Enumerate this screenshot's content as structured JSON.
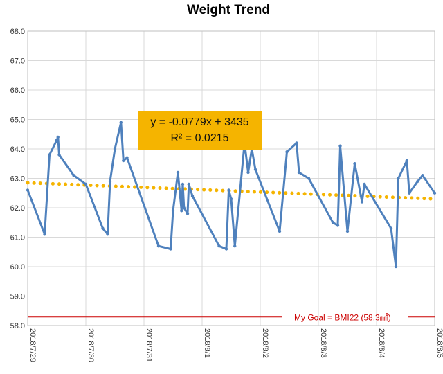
{
  "chart_data": {
    "type": "line",
    "title": "Weight Trend",
    "xlabel": "",
    "ylabel": "",
    "ylim": [
      58.0,
      68.0
    ],
    "yticks": [
      "58.0",
      "59.0",
      "60.0",
      "61.0",
      "62.0",
      "63.0",
      "64.0",
      "65.0",
      "66.0",
      "67.0",
      "68.0"
    ],
    "xlim": [
      "2018/7/29",
      "2018/8/5"
    ],
    "xtick_labels": [
      "2018/7/29",
      "2018/7/30",
      "2018/7/31",
      "2018/8/1",
      "2018/8/2",
      "2018/8/3",
      "2018/8/4",
      "2018/8/5"
    ],
    "grid": true,
    "series": [
      {
        "color": "#4f81bd",
        "points": [
          [
            "2018/7/29 00:00",
            62.6
          ],
          [
            "2018/7/29 07:00",
            61.1
          ],
          [
            "2018/7/29 09:00",
            63.8
          ],
          [
            "2018/7/29 12:00",
            64.3
          ],
          [
            "2018/7/29 12:30",
            64.4
          ],
          [
            "2018/7/29 13:00",
            63.8
          ],
          [
            "2018/7/29 19:00",
            63.1
          ],
          [
            "2018/7/30 00:00",
            62.8
          ],
          [
            "2018/7/30 07:00",
            61.3
          ],
          [
            "2018/7/30 09:00",
            61.1
          ],
          [
            "2018/7/30 10:00",
            62.9
          ],
          [
            "2018/7/30 12:00",
            64.0
          ],
          [
            "2018/7/30 14:30",
            64.9
          ],
          [
            "2018/7/30 15:30",
            63.6
          ],
          [
            "2018/7/30 17:00",
            63.7
          ],
          [
            "2018/7/31 06:00",
            60.7
          ],
          [
            "2018/7/31 11:00",
            60.6
          ],
          [
            "2018/7/31 12:00",
            61.9
          ],
          [
            "2018/7/31 14:00",
            63.2
          ],
          [
            "2018/7/31 15:30",
            61.9
          ],
          [
            "2018/7/31 16:00",
            62.8
          ],
          [
            "2018/7/31 16:30",
            62.0
          ],
          [
            "2018/7/31 18:00",
            61.8
          ],
          [
            "2018/7/31 18:30",
            62.8
          ],
          [
            "2018/7/31 20:00",
            62.4
          ],
          [
            "2018/8/1 07:00",
            60.7
          ],
          [
            "2018/8/1 10:00",
            60.6
          ],
          [
            "2018/8/1 11:00",
            62.6
          ],
          [
            "2018/8/1 12:00",
            62.3
          ],
          [
            "2018/8/1 13:30",
            60.7
          ],
          [
            "2018/8/1 17:30",
            64.2
          ],
          [
            "2018/8/1 19:00",
            63.2
          ],
          [
            "2018/8/1 20:30",
            64.0
          ],
          [
            "2018/8/1 22:00",
            63.3
          ],
          [
            "2018/8/2 08:00",
            61.2
          ],
          [
            "2018/8/2 11:00",
            63.9
          ],
          [
            "2018/8/2 15:00",
            64.2
          ],
          [
            "2018/8/2 16:00",
            63.2
          ],
          [
            "2018/8/2 20:00",
            63.0
          ],
          [
            "2018/8/3 06:00",
            61.5
          ],
          [
            "2018/8/3 08:00",
            61.4
          ],
          [
            "2018/8/3 09:00",
            64.1
          ],
          [
            "2018/8/3 12:00",
            61.2
          ],
          [
            "2018/8/3 15:00",
            63.5
          ],
          [
            "2018/8/3 18:00",
            62.2
          ],
          [
            "2018/8/3 19:00",
            62.8
          ],
          [
            "2018/8/4 06:00",
            61.3
          ],
          [
            "2018/8/4 08:00",
            60.0
          ],
          [
            "2018/8/4 09:00",
            63.0
          ],
          [
            "2018/8/4 12:30",
            63.6
          ],
          [
            "2018/8/4 13:30",
            62.5
          ],
          [
            "2018/8/4 17:00",
            62.9
          ],
          [
            "2018/8/4 19:00",
            63.1
          ],
          [
            "2018/8/5 00:00",
            62.5
          ]
        ]
      }
    ],
    "trendline": {
      "style": "dotted",
      "color": "#f5b400",
      "start": [
        "2018/7/29",
        62.85
      ],
      "end": [
        "2018/8/5",
        62.3
      ],
      "equation": "y = -0.0779x + 3435",
      "r_squared": "R² = 0.0215"
    },
    "reference_line": {
      "label": "My Goal = BMI22 (58.3㎟)",
      "y": 58.3,
      "color": "#cc0000"
    }
  }
}
